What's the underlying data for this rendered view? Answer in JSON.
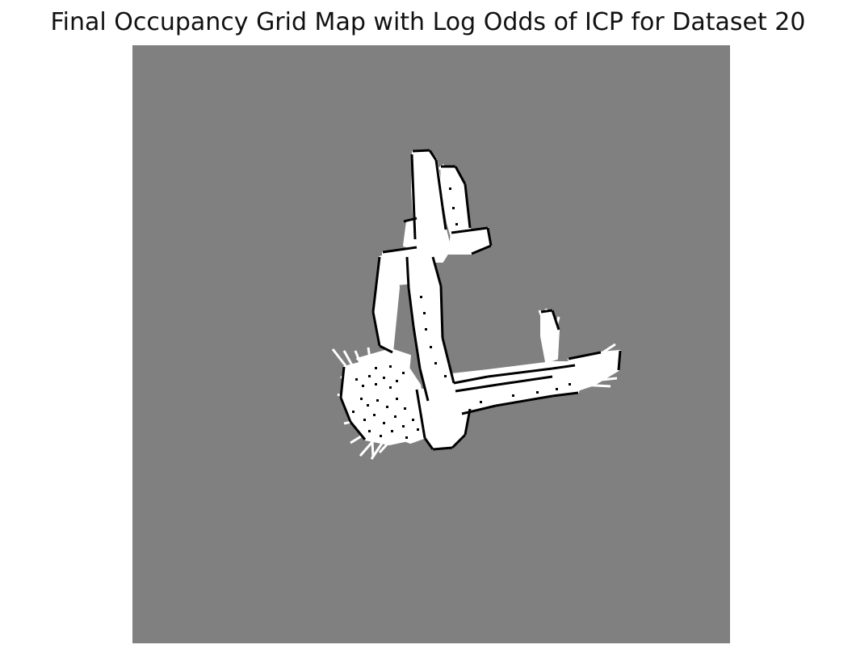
{
  "chart_data": {
    "type": "heatmap",
    "title": "Final Occupancy Grid Map with Log Odds of ICP for Dataset 20",
    "axes_visible": false,
    "colormap": "gray",
    "cell_states": [
      {
        "state": "unknown",
        "color": "#808080"
      },
      {
        "state": "free",
        "color": "#ffffff"
      },
      {
        "state": "occupied",
        "color": "#000000"
      }
    ]
  }
}
